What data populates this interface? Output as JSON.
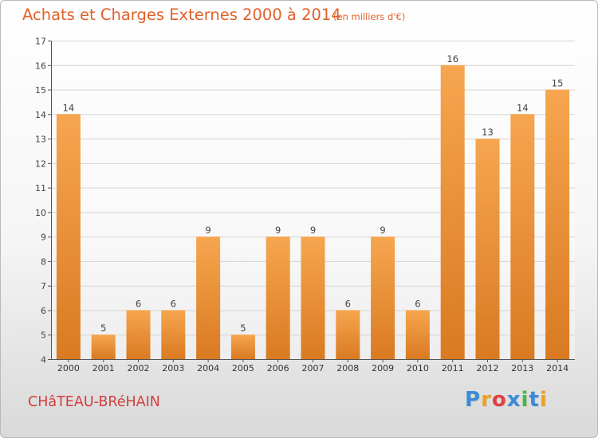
{
  "title": "Achats et Charges Externes 2000 à 2014",
  "unit": "(en milliers d'€)",
  "commune": "CHâTEAU-BRéHAIN",
  "brand": {
    "text": "Proxiti",
    "letter_colors": [
      "#3b8bd6",
      "#f0a020",
      "#e04040",
      "#3b8bd6",
      "#49b548",
      "#3b8bd6",
      "#f0a020"
    ]
  },
  "colors": {
    "bar_light": "#f6a64f",
    "bar_dark": "#d97a22",
    "title": "#e0612a",
    "commune": "#d0403f"
  },
  "chart_data": {
    "type": "bar",
    "categories": [
      "2000",
      "2001",
      "2002",
      "2003",
      "2004",
      "2005",
      "2006",
      "2007",
      "2008",
      "2009",
      "2010",
      "2011",
      "2012",
      "2013",
      "2014"
    ],
    "values": [
      14,
      5,
      6,
      6,
      9,
      5,
      9,
      9,
      6,
      9,
      6,
      16,
      13,
      14,
      15
    ],
    "data_labels": [
      "14",
      "5",
      "6",
      "6",
      "9",
      "5",
      "9",
      "9",
      "6",
      "9",
      "6",
      "16",
      "13",
      "14",
      "15"
    ],
    "yticks": [
      4,
      5,
      6,
      7,
      8,
      9,
      10,
      11,
      12,
      13,
      14,
      15,
      16,
      17
    ],
    "ylim": [
      4,
      17
    ],
    "grid": true,
    "title": "Achats et Charges Externes 2000 à 2014",
    "xlabel": "",
    "ylabel": ""
  }
}
